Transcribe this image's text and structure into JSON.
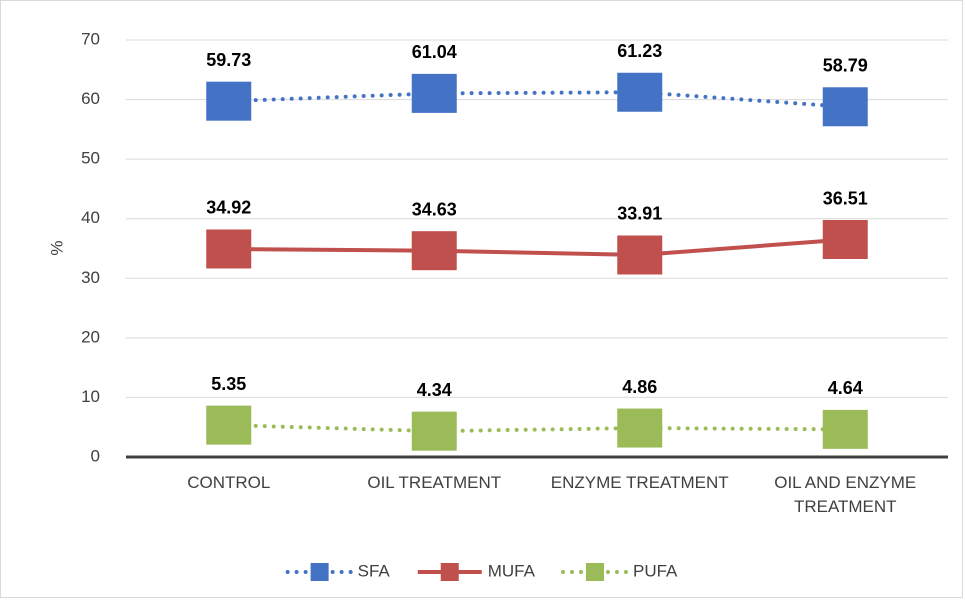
{
  "chart_data": {
    "type": "line",
    "categories": [
      "CONTROL",
      "OIL TREATMENT",
      "ENZYME TREATMENT",
      "OIL AND ENZYME TREATMENT"
    ],
    "y_label": "%",
    "ylim": [
      0,
      70
    ],
    "yticks": [
      0,
      10,
      20,
      30,
      40,
      50,
      60,
      70
    ],
    "grid": true,
    "legend": "bottom",
    "series": [
      {
        "name": "SFA",
        "color": "#4472c4",
        "line_style": "dotted",
        "values": [
          59.73,
          61.04,
          61.23,
          58.79
        ]
      },
      {
        "name": "MUFA",
        "color": "#c0504d",
        "line_style": "solid",
        "values": [
          34.92,
          34.63,
          33.91,
          36.51
        ]
      },
      {
        "name": "PUFA",
        "color": "#9bbb59",
        "line_style": "dotted",
        "values": [
          5.35,
          4.34,
          4.86,
          4.64
        ]
      }
    ]
  }
}
